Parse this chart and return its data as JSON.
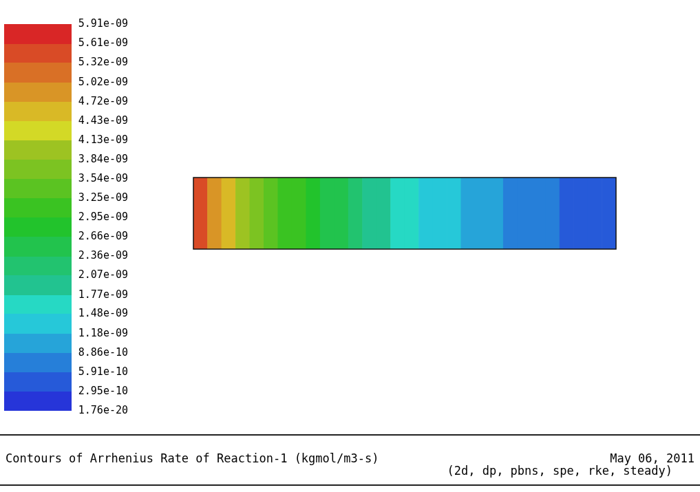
{
  "chart_data": {
    "type": "heatmap",
    "title": "Contours of Arrhenius Rate of Reaction-1 (kgmol/m3-s)",
    "categories": [
      null,
      null,
      null,
      null,
      null,
      null,
      null,
      null,
      null,
      null,
      null,
      null,
      null,
      null,
      null,
      null,
      null,
      null,
      null,
      null,
      null,
      null,
      null,
      null,
      null,
      null,
      null,
      null,
      null,
      null
    ],
    "y_categories": [
      null
    ],
    "cells": [
      [
        5.6e-09,
        5e-09,
        4.6e-09,
        4.1e-09,
        3.7e-09,
        3.5e-09,
        3.1e-09,
        3e-09,
        2.8e-09,
        2.6e-09,
        2.4e-09,
        2.2e-09,
        2e-09,
        1.8e-09,
        1.7e-09,
        1.5e-09,
        1.4e-09,
        1.3e-09,
        1.25e-09,
        1.1e-09,
        1.05e-09,
        1e-09,
        8e-10,
        7.5e-10,
        7e-10,
        6e-10,
        5e-10,
        4.5e-10,
        4.5e-10,
        4e-10
      ]
    ],
    "clim": [
      1.76e-20,
      5.91e-09
    ],
    "cticks": [
      {
        "value": 5.91e-09,
        "label": "5.91e-09"
      },
      {
        "value": 5.61e-09,
        "label": "5.61e-09"
      },
      {
        "value": 5.32e-09,
        "label": "5.32e-09"
      },
      {
        "value": 5.02e-09,
        "label": "5.02e-09"
      },
      {
        "value": 4.72e-09,
        "label": "4.72e-09"
      },
      {
        "value": 4.43e-09,
        "label": "4.43e-09"
      },
      {
        "value": 4.13e-09,
        "label": "4.13e-09"
      },
      {
        "value": 3.84e-09,
        "label": "3.84e-09"
      },
      {
        "value": 3.54e-09,
        "label": "3.54e-09"
      },
      {
        "value": 3.25e-09,
        "label": "3.25e-09"
      },
      {
        "value": 2.95e-09,
        "label": "2.95e-09"
      },
      {
        "value": 2.66e-09,
        "label": "2.66e-09"
      },
      {
        "value": 2.36e-09,
        "label": "2.36e-09"
      },
      {
        "value": 2.07e-09,
        "label": "2.07e-09"
      },
      {
        "value": 1.77e-09,
        "label": "1.77e-09"
      },
      {
        "value": 1.48e-09,
        "label": "1.48e-09"
      },
      {
        "value": 1.18e-09,
        "label": "1.18e-09"
      },
      {
        "value": 8.86e-10,
        "label": "8.86e-10"
      },
      {
        "value": 5.91e-10,
        "label": "5.91e-10"
      },
      {
        "value": 2.95e-10,
        "label": "2.95e-10"
      },
      {
        "value": 1.76e-20,
        "label": "1.76e-20"
      }
    ],
    "annotations": [
      "May 06, 2011",
      "(2d, dp, pbns, spe, rke, steady)"
    ]
  }
}
